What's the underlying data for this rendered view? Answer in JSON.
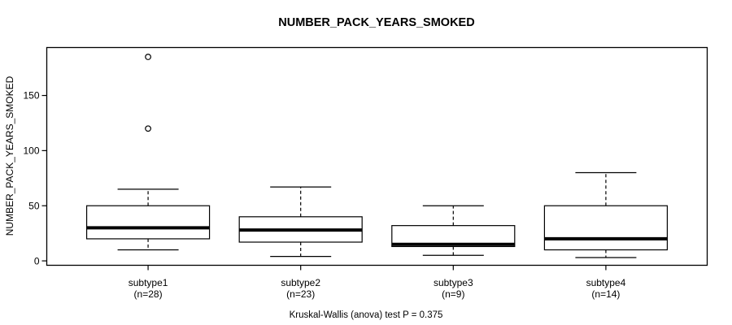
{
  "chart_data": {
    "type": "boxplot",
    "title": "NUMBER_PACK_YEARS_SMOKED",
    "ylabel": "NUMBER_PACK_YEARS_SMOKED",
    "xlabel": "",
    "footer": "Kruskal-Wallis (anova) test P = 0.375",
    "p_value": 0.375,
    "yticks": [
      0,
      50,
      100,
      150
    ],
    "ylim": [
      -4,
      193.5
    ],
    "grid": false,
    "legend": null,
    "groups": [
      {
        "label": "subtype1",
        "n": 28,
        "whisker_low": 10,
        "q1": 20,
        "median": 30,
        "q3": 50,
        "whisker_high": 65,
        "outliers": [
          120,
          185
        ]
      },
      {
        "label": "subtype2",
        "n": 23,
        "whisker_low": 4,
        "q1": 17,
        "median": 28,
        "q3": 40,
        "whisker_high": 67,
        "outliers": []
      },
      {
        "label": "subtype3",
        "n": 9,
        "whisker_low": 5,
        "q1": 13,
        "median": 15,
        "q3": 32,
        "whisker_high": 50,
        "outliers": []
      },
      {
        "label": "subtype4",
        "n": 14,
        "whisker_low": 3,
        "q1": 10,
        "median": 20,
        "q3": 50,
        "whisker_high": 80,
        "outliers": []
      }
    ],
    "colors": {
      "line": "#000000",
      "box_fill": "#ffffff",
      "frame": "#000000",
      "background": "#ffffff"
    }
  }
}
